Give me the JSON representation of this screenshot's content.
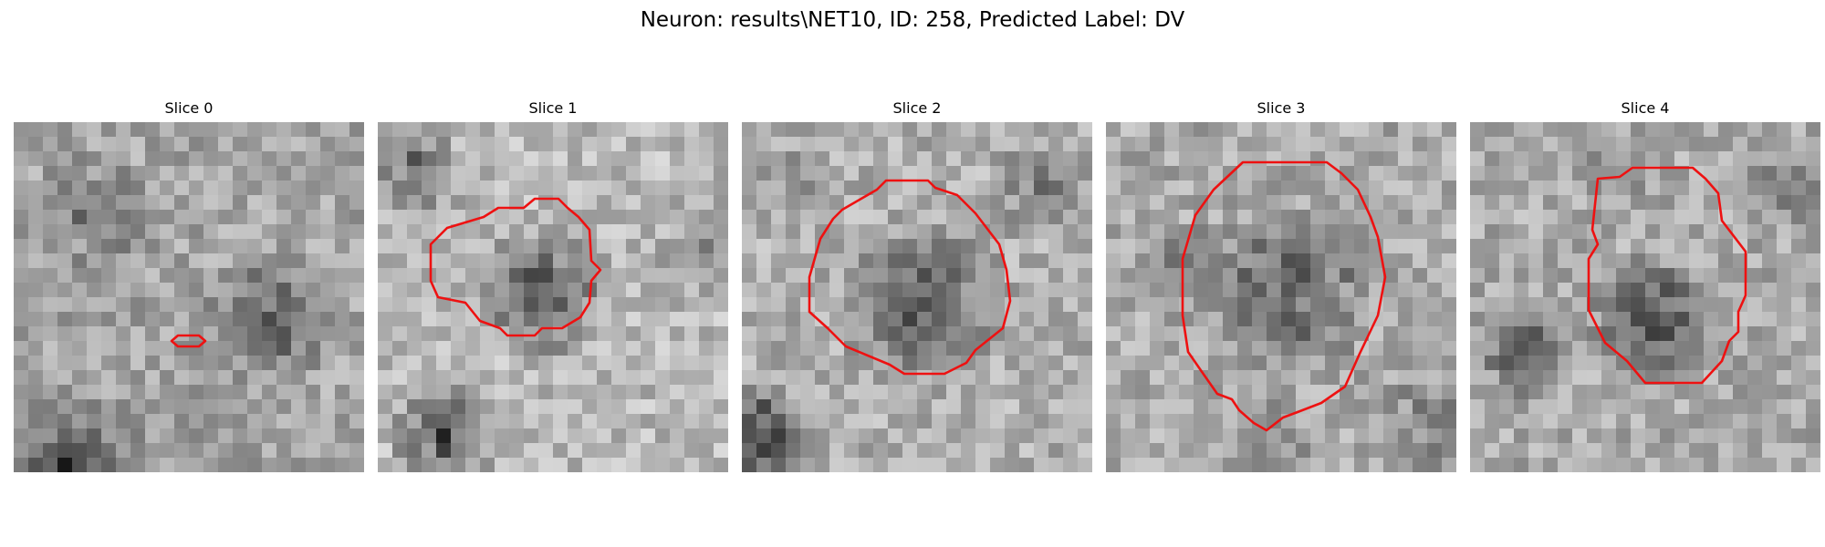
{
  "figure": {
    "title": "Neuron: results\\NET10, ID: 258, Predicted Label: DV",
    "contour_color": "#ee1111"
  },
  "panels": [
    {
      "title": "Slice 0"
    },
    {
      "title": "Slice 1"
    },
    {
      "title": "Slice 2"
    },
    {
      "title": "Slice 3"
    },
    {
      "title": "Slice 4"
    }
  ]
}
